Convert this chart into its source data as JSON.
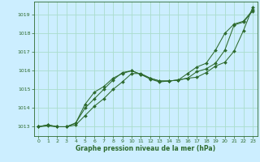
{
  "bg_color": "#cceeff",
  "grid_color": "#aaddcc",
  "line_color": "#2d6a2d",
  "xlabel": "Graphe pression niveau de la mer (hPa)",
  "xlabel_color": "#2d6a2d",
  "xlim": [
    -0.5,
    23.5
  ],
  "ylim": [
    1012.5,
    1019.7
  ],
  "yticks": [
    1013,
    1014,
    1015,
    1016,
    1017,
    1018,
    1019
  ],
  "xticks": [
    0,
    1,
    2,
    3,
    4,
    5,
    6,
    7,
    8,
    9,
    10,
    11,
    12,
    13,
    14,
    15,
    16,
    17,
    18,
    19,
    20,
    21,
    22,
    23
  ],
  "line1_x": [
    0,
    1,
    2,
    3,
    4,
    5,
    6,
    7,
    8,
    9,
    10,
    11,
    12,
    13,
    14,
    15,
    16,
    17,
    18,
    19,
    20,
    21,
    22,
    23
  ],
  "line1_y": [
    1013.0,
    1013.1,
    1013.0,
    1013.0,
    1013.2,
    1014.0,
    1014.5,
    1015.0,
    1015.5,
    1015.9,
    1016.0,
    1015.8,
    1015.55,
    1015.4,
    1015.45,
    1015.5,
    1015.85,
    1016.2,
    1016.4,
    1017.1,
    1018.0,
    1018.5,
    1018.65,
    1019.25
  ],
  "line2_x": [
    0,
    1,
    2,
    3,
    4,
    5,
    6,
    7,
    8,
    9,
    10,
    11,
    12,
    13,
    14,
    15,
    16,
    17,
    18,
    19,
    20,
    21,
    22,
    23
  ],
  "line2_y": [
    1013.0,
    1013.05,
    1013.0,
    1013.0,
    1013.1,
    1013.6,
    1014.1,
    1014.5,
    1015.0,
    1015.4,
    1015.85,
    1015.85,
    1015.6,
    1015.45,
    1015.45,
    1015.5,
    1015.6,
    1015.65,
    1015.9,
    1016.25,
    1016.45,
    1017.05,
    1018.15,
    1019.4
  ],
  "line3_x": [
    0,
    1,
    2,
    3,
    4,
    5,
    6,
    7,
    8,
    9,
    10,
    11,
    12,
    13,
    14,
    15,
    16,
    17,
    18,
    19,
    20,
    21,
    22,
    23
  ],
  "line3_y": [
    1013.0,
    1013.1,
    1013.0,
    1013.0,
    1013.2,
    1014.2,
    1014.85,
    1015.15,
    1015.6,
    1015.85,
    1016.0,
    1015.8,
    1015.6,
    1015.45,
    1015.45,
    1015.5,
    1015.6,
    1015.95,
    1016.1,
    1016.4,
    1017.1,
    1018.45,
    1018.6,
    1019.2
  ]
}
